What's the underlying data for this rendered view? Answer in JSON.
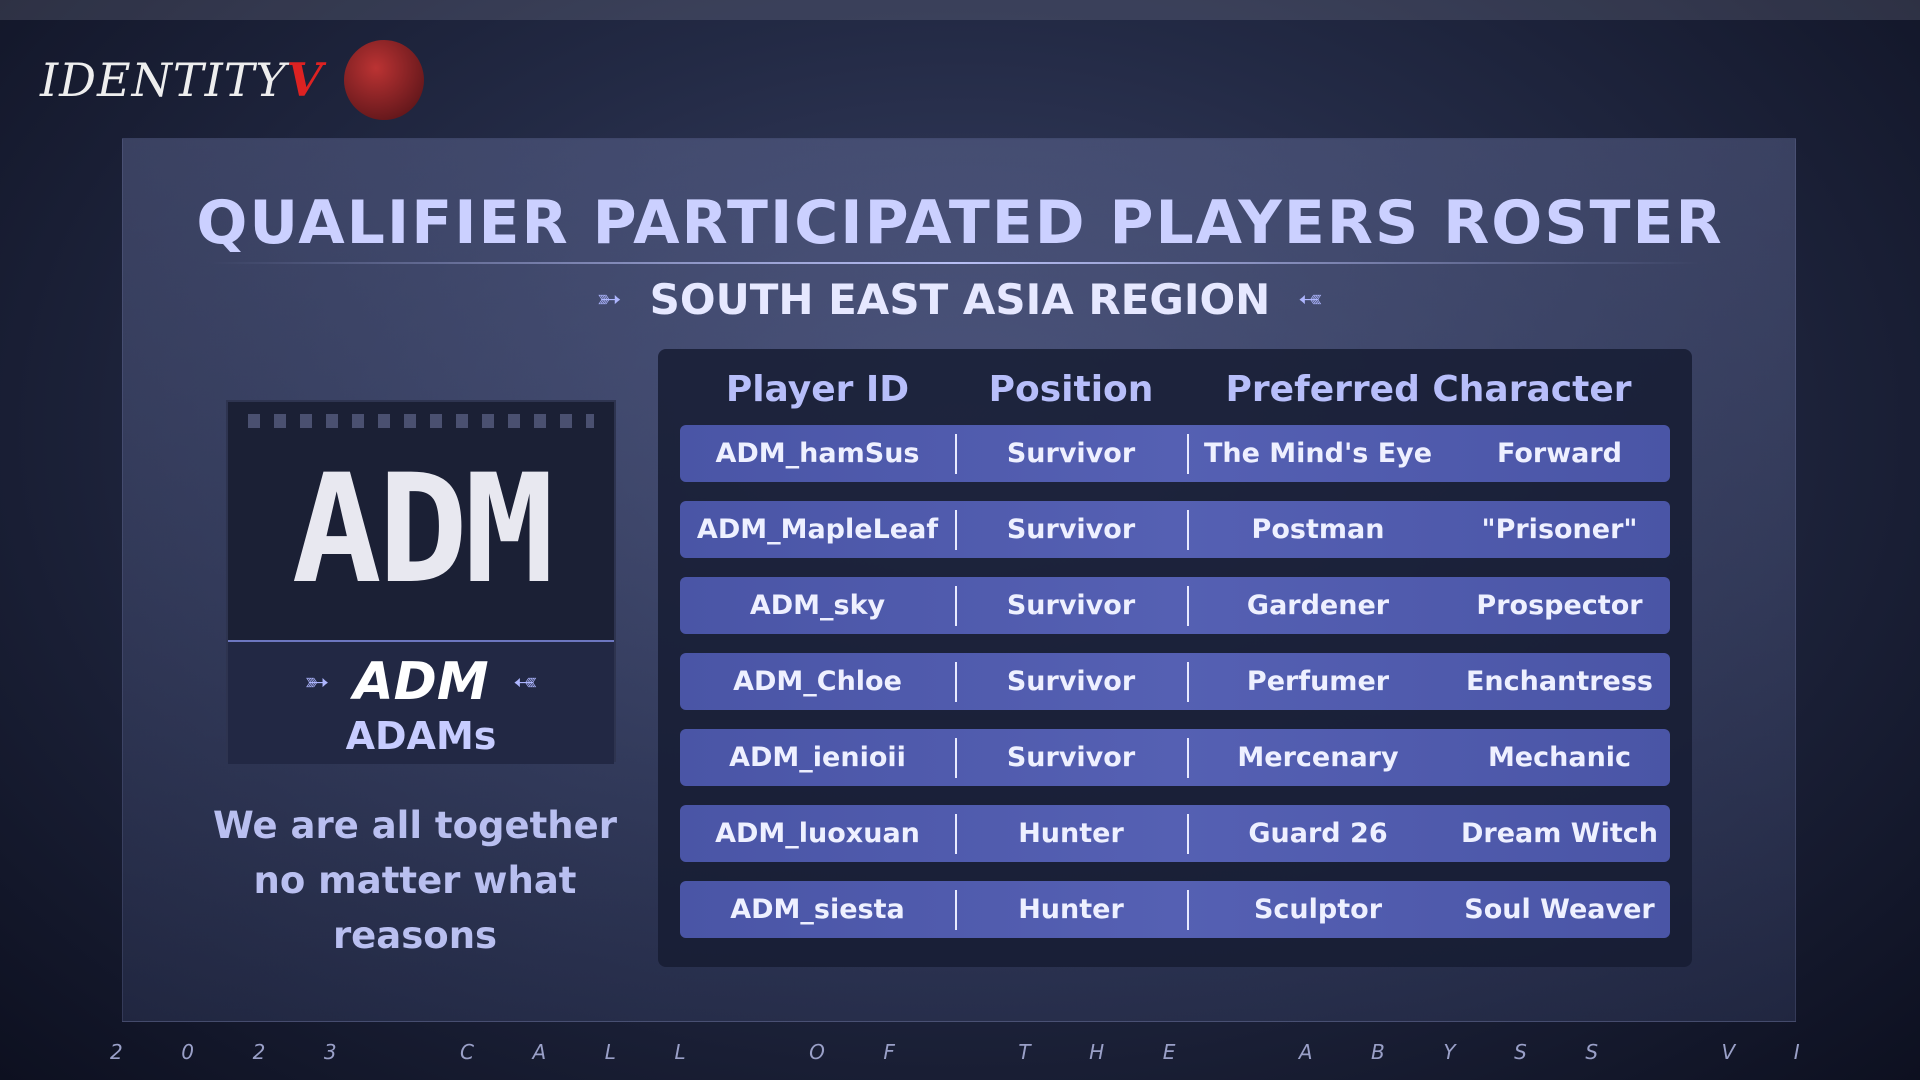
{
  "logo": {
    "game": "IDENTITY",
    "mark": "V"
  },
  "title": "QUALIFIER PARTICIPATED PLAYERS ROSTER",
  "subtitle": "SOUTH EAST ASIA REGION",
  "team": {
    "logo_text": "ADM",
    "tag": "ADM",
    "name": "ADAMs",
    "tagline_1": "We are all together",
    "tagline_2": "no matter what reasons"
  },
  "table": {
    "headers": [
      "Player ID",
      "Position",
      "Preferred Character"
    ],
    "rows": [
      {
        "id": "ADM_hamSus",
        "position": "Survivor",
        "char1": "The Mind's Eye",
        "char2": "Forward"
      },
      {
        "id": "ADM_MapleLeaf",
        "position": "Survivor",
        "char1": "Postman",
        "char2": "\"Prisoner\""
      },
      {
        "id": "ADM_sky",
        "position": "Survivor",
        "char1": "Gardener",
        "char2": "Prospector"
      },
      {
        "id": "ADM_Chloe",
        "position": "Survivor",
        "char1": "Perfumer",
        "char2": "Enchantress"
      },
      {
        "id": "ADM_ienioii",
        "position": "Survivor",
        "char1": "Mercenary",
        "char2": "Mechanic"
      },
      {
        "id": "ADM_luoxuan",
        "position": "Hunter",
        "char1": "Guard 26",
        "char2": "Dream Witch"
      },
      {
        "id": "ADM_siesta",
        "position": "Hunter",
        "char1": "Sculptor",
        "char2": "Soul Weaver"
      }
    ]
  },
  "footer": [
    "2",
    "0",
    "2",
    "3",
    "",
    "C",
    "A",
    "L",
    "L",
    "",
    "O",
    "F",
    "",
    "T",
    "H",
    "E",
    "",
    "A",
    "B",
    "Y",
    "S",
    "S",
    "",
    "V",
    "I"
  ]
}
